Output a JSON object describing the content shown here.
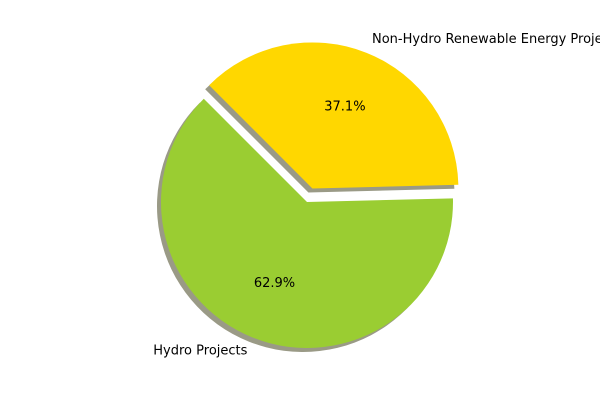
{
  "chart_data": {
    "type": "pie",
    "title": "",
    "slices": [
      {
        "label": "Hydro Projects",
        "value": 62.9,
        "pct_label": "62.9%",
        "color": "#9ACD32",
        "exploded": false
      },
      {
        "label": "Non-Hydro Renewable Energy Projects",
        "value": 37.1,
        "pct_label": "37.1%",
        "color": "#FFD700",
        "exploded": true
      }
    ],
    "shadow": true,
    "shadow_color": "#9a9a86"
  }
}
